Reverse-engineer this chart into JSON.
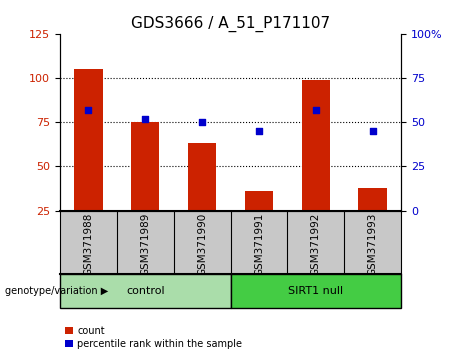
{
  "title": "GDS3666 / A_51_P171107",
  "samples": [
    "GSM371988",
    "GSM371989",
    "GSM371990",
    "GSM371991",
    "GSM371992",
    "GSM371993"
  ],
  "counts": [
    105,
    75,
    63,
    36,
    99,
    38
  ],
  "percentiles": [
    57,
    52,
    50,
    45,
    57,
    45
  ],
  "left_ylim": [
    25,
    125
  ],
  "right_ylim": [
    0,
    100
  ],
  "left_yticks": [
    25,
    50,
    75,
    100,
    125
  ],
  "right_yticks": [
    0,
    25,
    50,
    75,
    100
  ],
  "right_yticklabels": [
    "0",
    "25",
    "50",
    "75",
    "100%"
  ],
  "bar_color": "#cc2200",
  "dot_color": "#0000cc",
  "grid_color": "#000000",
  "bar_bottom": 25,
  "groups": [
    {
      "label": "control",
      "indices": [
        0,
        1,
        2
      ],
      "color": "#aaddaa"
    },
    {
      "label": "SIRT1 null",
      "indices": [
        3,
        4,
        5
      ],
      "color": "#44cc44"
    }
  ],
  "group_label_prefix": "genotype/variation",
  "legend_count_label": "count",
  "legend_percentile_label": "percentile rank within the sample",
  "xlabel_area_color": "#c8c8c8",
  "title_fontsize": 11,
  "tick_fontsize": 8,
  "label_fontsize": 7.5,
  "group_fontsize": 8
}
